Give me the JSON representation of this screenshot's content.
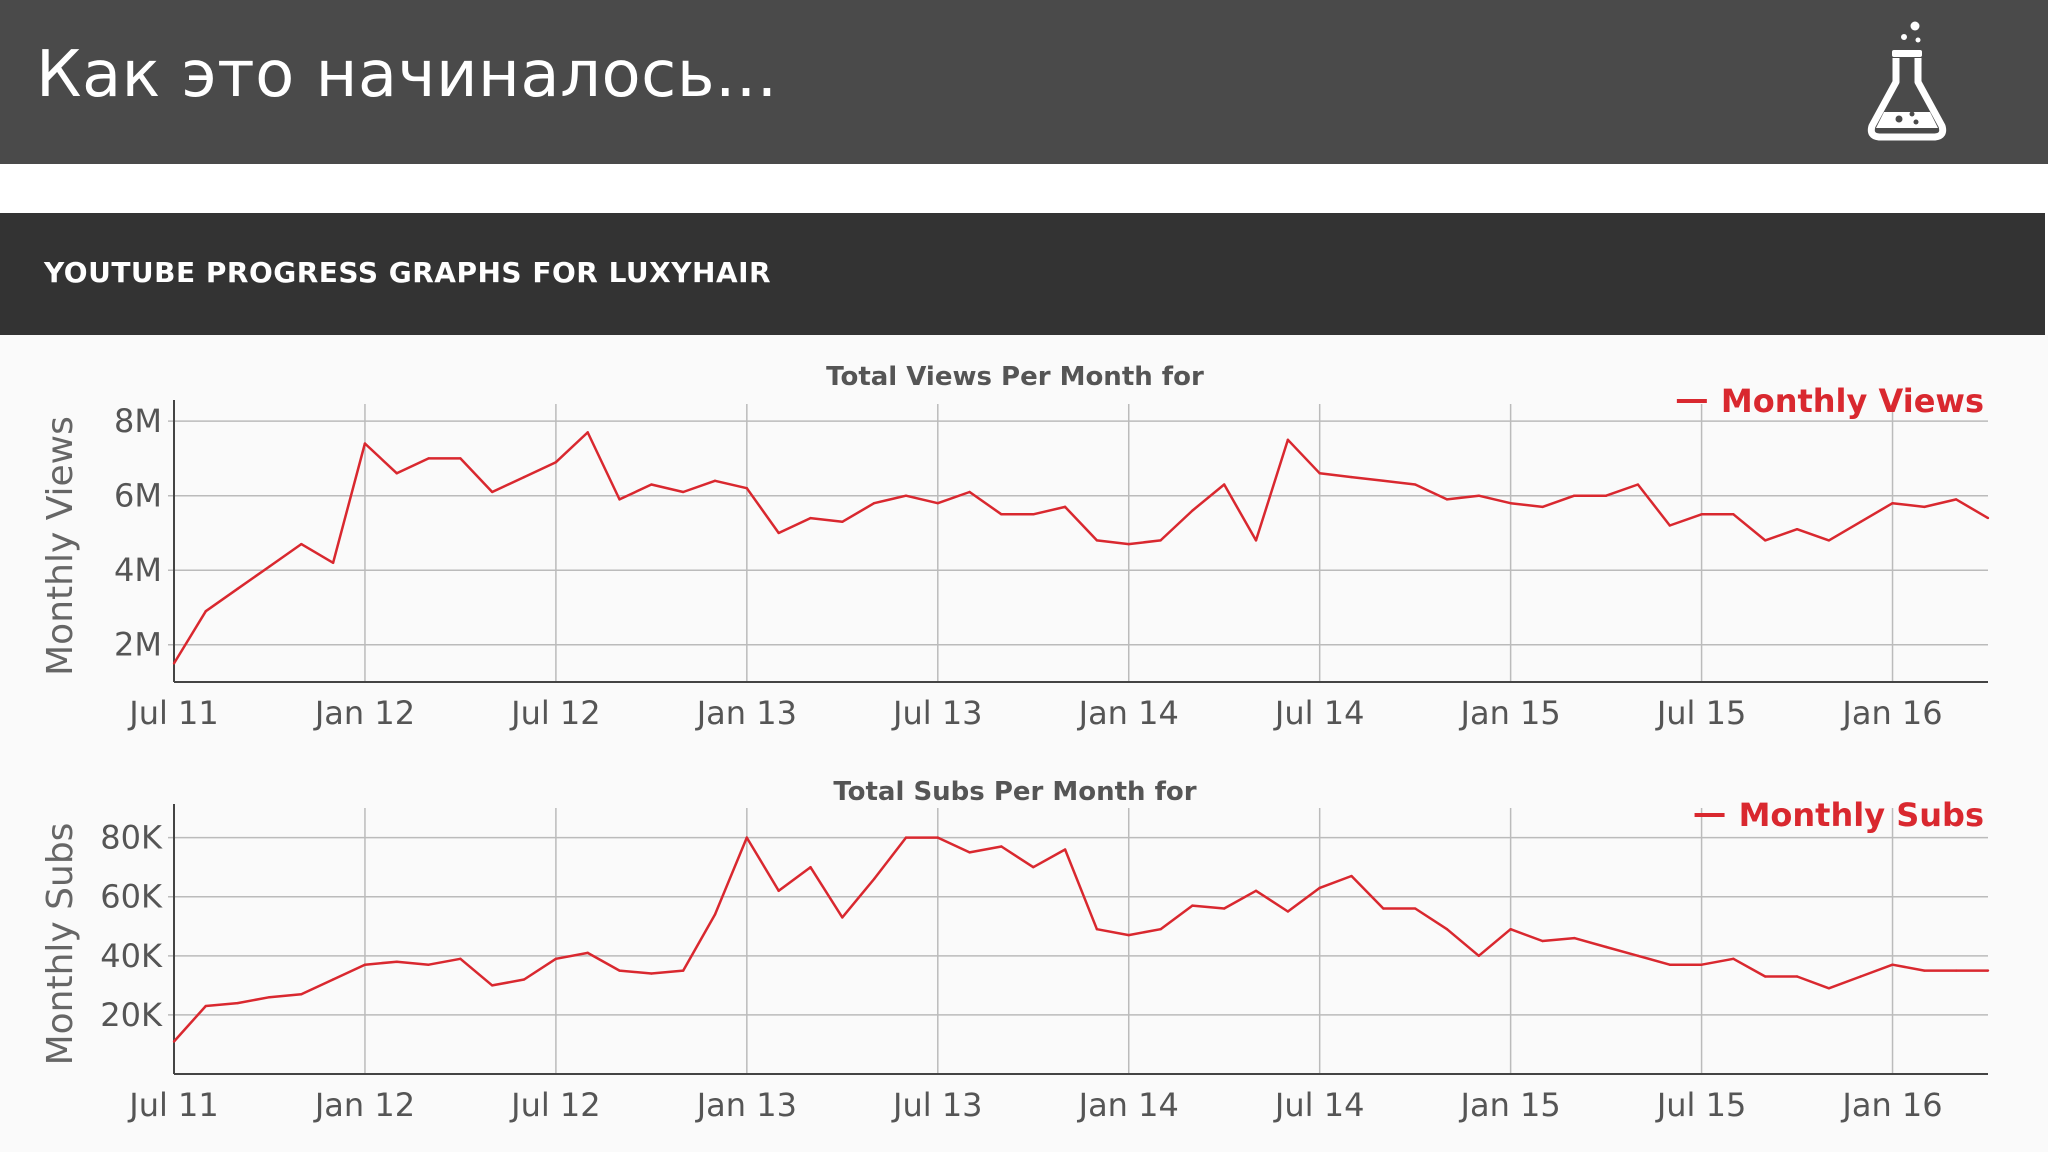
{
  "slide": {
    "title": "Как это начиналось...",
    "icon": "flask-icon",
    "header_color": "#4a4a4a"
  },
  "panel": {
    "title": "YOUTUBE PROGRESS GRAPHS FOR LUXYHAIR",
    "header_color": "#333333"
  },
  "chart_data": [
    {
      "type": "line",
      "title": "Total Views Per Month for",
      "ylabel": "Monthly Views",
      "xlabel": "",
      "x_start": "2011-07",
      "x_ticks": [
        "Jul 11",
        "Jan 12",
        "Jul 12",
        "Jan 13",
        "Jul 13",
        "Jan 14",
        "Jul 14",
        "Jan 15",
        "Jul 15",
        "Jan 16"
      ],
      "y_ticks": [
        "2M",
        "4M",
        "6M",
        "8M"
      ],
      "y_tick_values": [
        2000000,
        4000000,
        6000000,
        8000000
      ],
      "ylim": [
        1000000,
        8300000
      ],
      "grid": true,
      "legend": "top-right",
      "color": "#d9282f",
      "series": [
        {
          "name": "Monthly Views",
          "values": [
            1500000,
            2900000,
            3500000,
            4100000,
            4700000,
            4200000,
            7400000,
            6600000,
            7000000,
            7000000,
            6100000,
            6500000,
            6900000,
            7700000,
            5900000,
            6300000,
            6100000,
            6400000,
            6200000,
            5000000,
            5400000,
            5300000,
            5800000,
            6000000,
            5800000,
            6100000,
            5500000,
            5500000,
            5700000,
            4800000,
            4700000,
            4800000,
            5600000,
            6300000,
            4800000,
            7500000,
            6600000,
            6500000,
            6400000,
            6300000,
            5900000,
            6000000,
            5800000,
            5700000,
            6000000,
            6000000,
            6300000,
            5200000,
            5500000,
            5500000,
            4800000,
            5100000,
            4800000,
            5300000,
            5800000,
            5700000,
            5900000,
            5400000
          ]
        }
      ]
    },
    {
      "type": "line",
      "title": "Total Subs Per Month for",
      "ylabel": "Monthly Subs",
      "xlabel": "",
      "x_start": "2011-07",
      "x_ticks": [
        "Jul 11",
        "Jan 12",
        "Jul 12",
        "Jan 13",
        "Jul 13",
        "Jan 14",
        "Jul 14",
        "Jan 15",
        "Jul 15",
        "Jan 16"
      ],
      "y_ticks": [
        "20K",
        "40K",
        "60K",
        "80K"
      ],
      "y_tick_values": [
        20000,
        40000,
        60000,
        80000
      ],
      "ylim": [
        0,
        88000
      ],
      "grid": true,
      "legend": "top-right",
      "color": "#d9282f",
      "series": [
        {
          "name": "Monthly Subs",
          "values": [
            11000,
            23000,
            24000,
            26000,
            27000,
            32000,
            37000,
            38000,
            37000,
            39000,
            30000,
            32000,
            39000,
            41000,
            35000,
            34000,
            35000,
            54000,
            80000,
            62000,
            70000,
            53000,
            66000,
            80000,
            80000,
            75000,
            77000,
            70000,
            76000,
            49000,
            47000,
            49000,
            57000,
            56000,
            62000,
            55000,
            63000,
            67000,
            56000,
            56000,
            49000,
            40000,
            49000,
            45000,
            46000,
            43000,
            40000,
            37000,
            37000,
            39000,
            33000,
            33000,
            29000,
            33000,
            37000,
            35000,
            35000,
            35000
          ]
        }
      ]
    }
  ]
}
